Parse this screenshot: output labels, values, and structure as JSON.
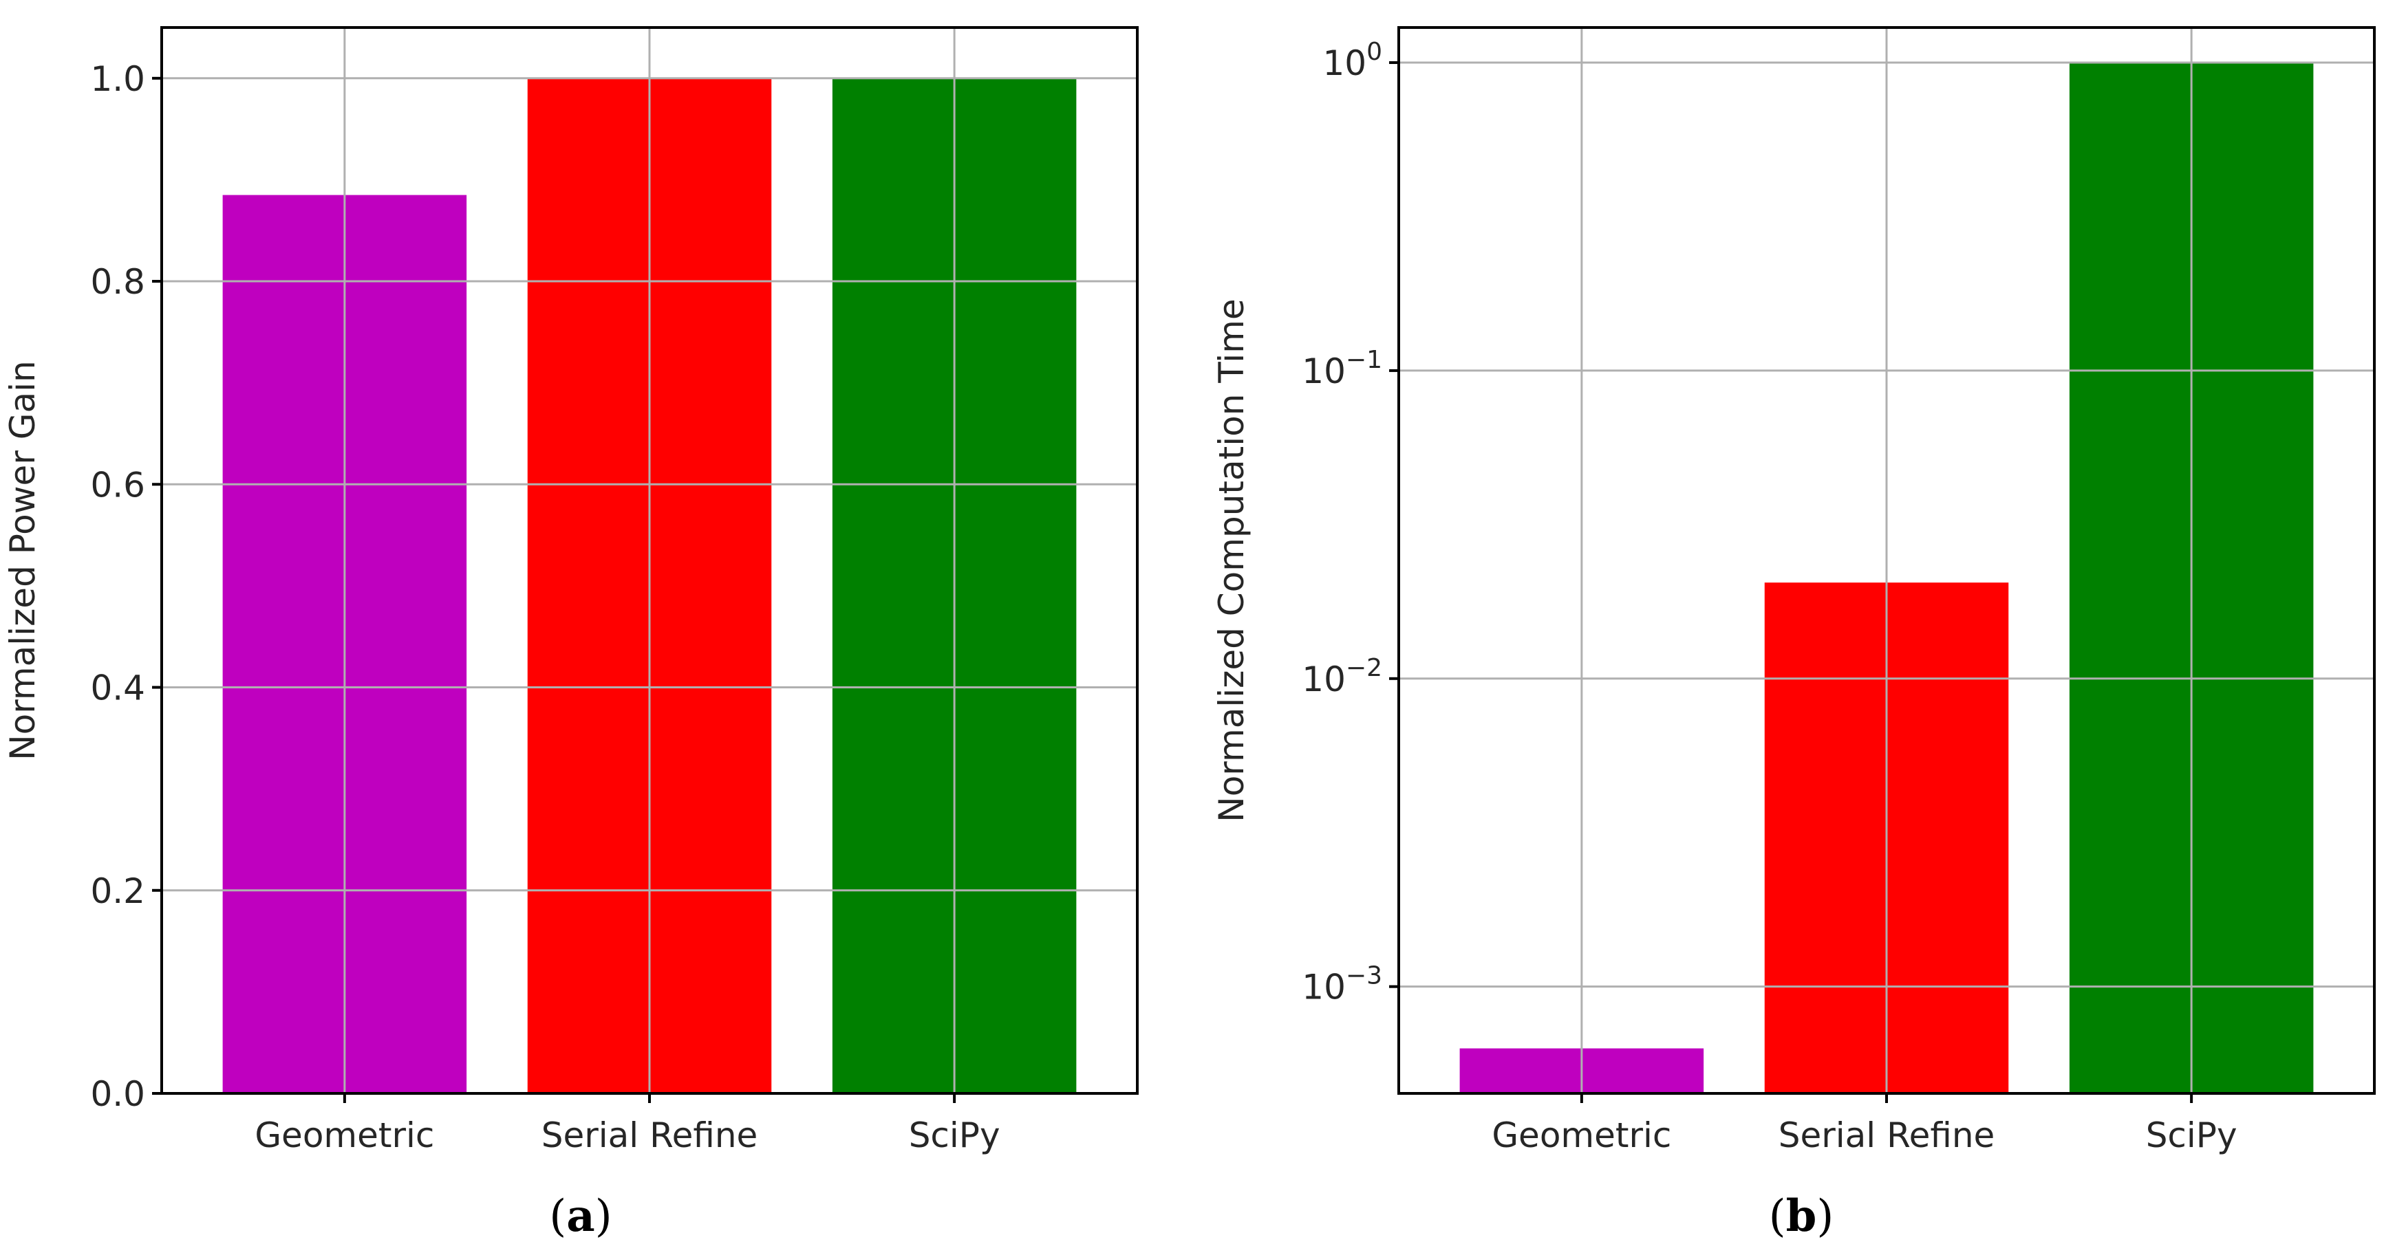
{
  "chart_data": [
    {
      "type": "bar",
      "panel_label": "a",
      "categories": [
        "Geometric",
        "Serial Refine",
        "SciPy"
      ],
      "values": [
        0.885,
        1.0,
        1.0
      ],
      "colors": [
        "#bf00bf",
        "#ff0000",
        "#008000"
      ],
      "ylabel": "Normalized Power Gain",
      "xlabel": "",
      "yscale": "linear",
      "ylim": [
        0,
        1.05
      ],
      "yticks": [
        0.0,
        0.2,
        0.4,
        0.6,
        0.8,
        1.0
      ],
      "ytick_labels": [
        "0.0",
        "0.2",
        "0.4",
        "0.6",
        "0.8",
        "1.0"
      ],
      "grid": true
    },
    {
      "type": "bar",
      "panel_label": "b",
      "categories": [
        "Geometric",
        "Serial Refine",
        "SciPy"
      ],
      "values": [
        0.00063,
        0.0205,
        1.0
      ],
      "colors": [
        "#bf00bf",
        "#ff0000",
        "#008000"
      ],
      "ylabel": "Normalized Computation Time",
      "xlabel": "",
      "yscale": "log",
      "ylim": [
        0.00045,
        1.3
      ],
      "yticks": [
        0.001,
        0.01,
        0.1,
        1
      ],
      "ytick_labels": [
        {
          "base": "10",
          "exp": "−3"
        },
        {
          "base": "10",
          "exp": "−2"
        },
        {
          "base": "10",
          "exp": "−1"
        },
        {
          "base": "10",
          "exp": "0"
        }
      ],
      "grid": true
    }
  ]
}
